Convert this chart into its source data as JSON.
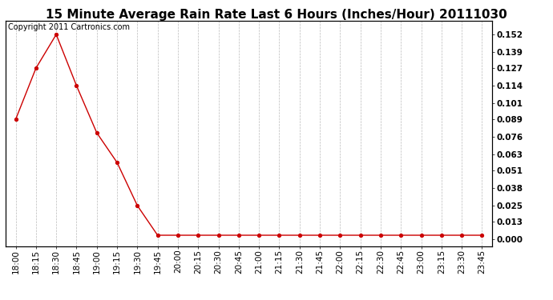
{
  "title": "15 Minute Average Rain Rate Last 6 Hours (Inches/Hour) 20111030",
  "copyright_text": "Copyright 2011 Cartronics.com",
  "x_labels": [
    "18:00",
    "18:15",
    "18:30",
    "18:45",
    "19:00",
    "19:15",
    "19:30",
    "19:45",
    "20:00",
    "20:15",
    "20:30",
    "20:45",
    "21:00",
    "21:15",
    "21:30",
    "21:45",
    "22:00",
    "22:15",
    "22:30",
    "22:45",
    "23:00",
    "23:15",
    "23:30",
    "23:45"
  ],
  "y_values": [
    0.089,
    0.127,
    0.152,
    0.114,
    0.079,
    0.057,
    0.025,
    0.003,
    0.003,
    0.003,
    0.003,
    0.003,
    0.003,
    0.003,
    0.003,
    0.003,
    0.003,
    0.003,
    0.003,
    0.003,
    0.003,
    0.003,
    0.003,
    0.003
  ],
  "y_ticks": [
    0.0,
    0.013,
    0.025,
    0.038,
    0.051,
    0.063,
    0.076,
    0.089,
    0.101,
    0.114,
    0.127,
    0.139,
    0.152
  ],
  "line_color": "#cc0000",
  "marker": "o",
  "marker_size": 3,
  "background_color": "#ffffff",
  "grid_color": "#bbbbbb",
  "title_fontsize": 11,
  "copyright_fontsize": 7,
  "tick_fontsize": 7.5,
  "ylim": [
    -0.005,
    0.162
  ],
  "xlim": [
    -0.5,
    23.5
  ]
}
